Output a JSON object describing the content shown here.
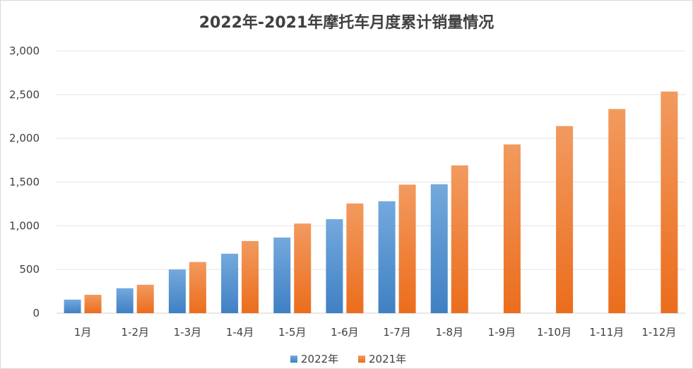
{
  "chart_data": {
    "type": "bar",
    "title": "2022年-2021年摩托车月度累计销量情况",
    "xlabel": "",
    "ylabel": "",
    "categories": [
      "1月",
      "1-2月",
      "1-3月",
      "1-4月",
      "1-5月",
      "1-6月",
      "1-7月",
      "1-8月",
      "1-9月",
      "1-10月",
      "1-11月",
      "1-12月"
    ],
    "series": [
      {
        "name": "2022年",
        "color": "#4a86c8",
        "values": [
          155,
          285,
          500,
          680,
          865,
          1075,
          1280,
          1475,
          null,
          null,
          null,
          null
        ]
      },
      {
        "name": "2021年",
        "color": "#ee7a2e",
        "values": [
          210,
          325,
          585,
          825,
          1025,
          1255,
          1470,
          1690,
          1930,
          2140,
          2335,
          2535
        ]
      }
    ],
    "ylim": [
      0,
      3000
    ],
    "yticks": [
      0,
      500,
      1000,
      1500,
      2000,
      2500,
      3000
    ],
    "ytick_labels": [
      "0",
      "500",
      "1,000",
      "1,500",
      "2,000",
      "2,500",
      "3,000"
    ],
    "grid": true,
    "legend_position": "bottom"
  }
}
